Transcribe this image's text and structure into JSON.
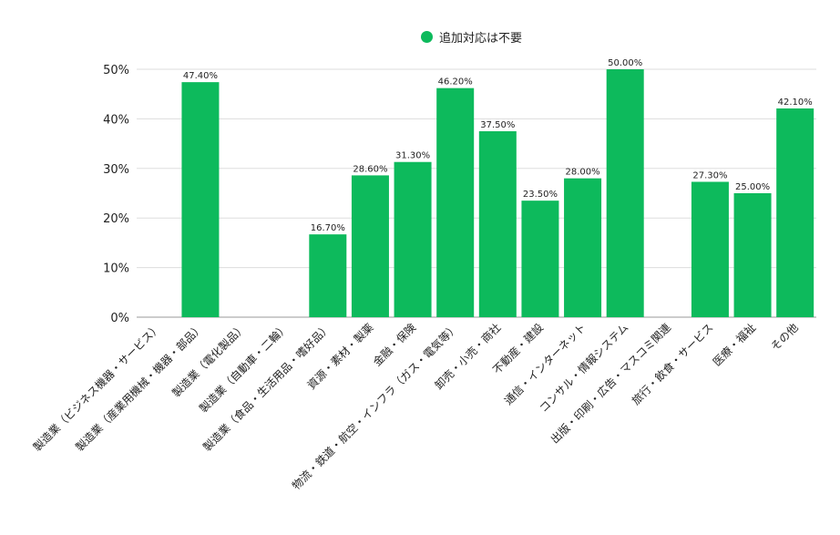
{
  "chart_data": {
    "type": "bar",
    "legend": {
      "label": "追加対応は不要",
      "position": "top-center"
    },
    "colors": {
      "bar": "#0dba5c",
      "grid": "#dddddd",
      "axis": "#999999",
      "text": "#222222"
    },
    "categories": [
      "製造業（ビジネス機器・サービス）",
      "製造業（産業用機械・機器・部品）",
      "製造業（電化製品）",
      "製造業（自動車・二輪）",
      "製造業（食品・生活用品・嗜好品）",
      "資源・素材・製薬",
      "金融・保険",
      "物流・鉄道・航空・インフラ（ガス・電気等）",
      "卸売・小売・商社",
      "不動産・建設",
      "通信・インターネット",
      "コンサル・情報システム",
      "出版・印刷・広告・マスコミ関連",
      "旅行・飲食・サービス",
      "医療・福祉",
      "その他"
    ],
    "values": [
      null,
      47.4,
      null,
      null,
      16.7,
      28.6,
      31.3,
      46.2,
      37.5,
      23.5,
      28.0,
      50.0,
      null,
      27.3,
      25.0,
      42.1
    ],
    "data_labels": [
      "",
      "47.40%",
      "",
      "",
      "16.70%",
      "28.60%",
      "31.30%",
      "46.20%",
      "37.50%",
      "23.50%",
      "28.00%",
      "50.00%",
      "",
      "27.30%",
      "25.00%",
      "42.10%"
    ],
    "ylim": [
      0,
      50
    ],
    "yticks": [
      "0%",
      "10%",
      "20%",
      "30%",
      "40%",
      "50%"
    ],
    "grid": true
  }
}
